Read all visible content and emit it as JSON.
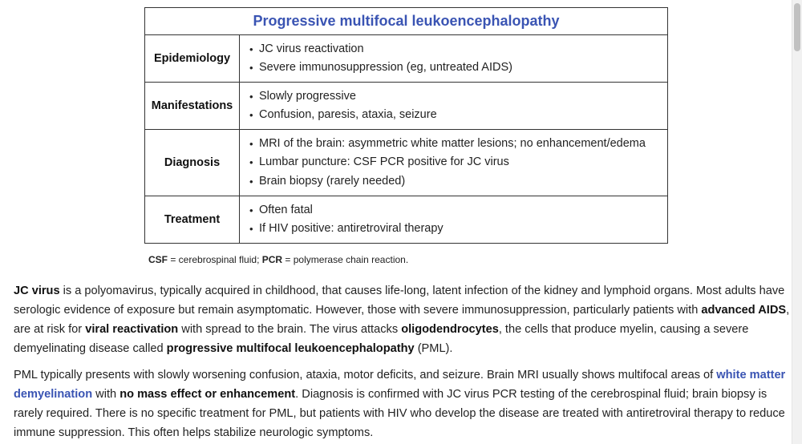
{
  "table": {
    "title": "Progressive multifocal leukoencephalopathy",
    "rows": [
      {
        "label": "Epidemiology",
        "items": [
          "JC virus reactivation",
          "Severe immunosuppression (eg, untreated AIDS)"
        ]
      },
      {
        "label": "Manifestations",
        "items": [
          "Slowly progressive",
          "Confusion, paresis, ataxia, seizure"
        ]
      },
      {
        "label": "Diagnosis",
        "items": [
          "MRI of the brain: asymmetric white matter lesions; no enhancement/edema",
          "Lumbar puncture: CSF PCR positive for JC virus",
          "Brain biopsy (rarely needed)"
        ]
      },
      {
        "label": "Treatment",
        "items": [
          "Often fatal",
          "If HIV positive: antiretroviral therapy"
        ]
      }
    ]
  },
  "caption": {
    "abbr1": "CSF",
    "def1": " = cerebrospinal fluid; ",
    "abbr2": "PCR",
    "def2": " = polymerase chain reaction."
  },
  "paragraph1": [
    {
      "t": "JC virus",
      "b": true
    },
    {
      "t": " is a polyomavirus, typically acquired in childhood, that causes life-long, latent infection of the kidney and lymphoid organs.  Most adults have serologic evidence of exposure but remain asymptomatic.  However, those with severe immunosuppression, particularly patients with "
    },
    {
      "t": "advanced AIDS",
      "b": true
    },
    {
      "t": ", are at risk for "
    },
    {
      "t": "viral reactivation",
      "b": true
    },
    {
      "t": " with spread to the brain.  The virus attacks "
    },
    {
      "t": "oligodendrocytes",
      "b": true
    },
    {
      "t": ", the cells that produce myelin, causing a severe demyelinating disease called "
    },
    {
      "t": "progressive multifocal leukoencephalopathy",
      "b": true
    },
    {
      "t": " (PML)."
    }
  ],
  "paragraph2": [
    {
      "t": "PML typically presents with slowly worsening confusion, ataxia, motor deficits, and seizure.  Brain MRI usually shows multifocal areas of "
    },
    {
      "t": "white matter demyelination",
      "link": true
    },
    {
      "t": " with "
    },
    {
      "t": "no mass effect or enhancement",
      "b": true
    },
    {
      "t": ".  Diagnosis is confirmed with JC virus PCR testing of the cerebrospinal fluid; brain biopsy is rarely required.  There is no specific treatment for PML, but patients with HIV who develop the disease are treated with antiretroviral therapy to reduce immune suppression.  This often helps stabilize neurologic symptoms."
    }
  ]
}
